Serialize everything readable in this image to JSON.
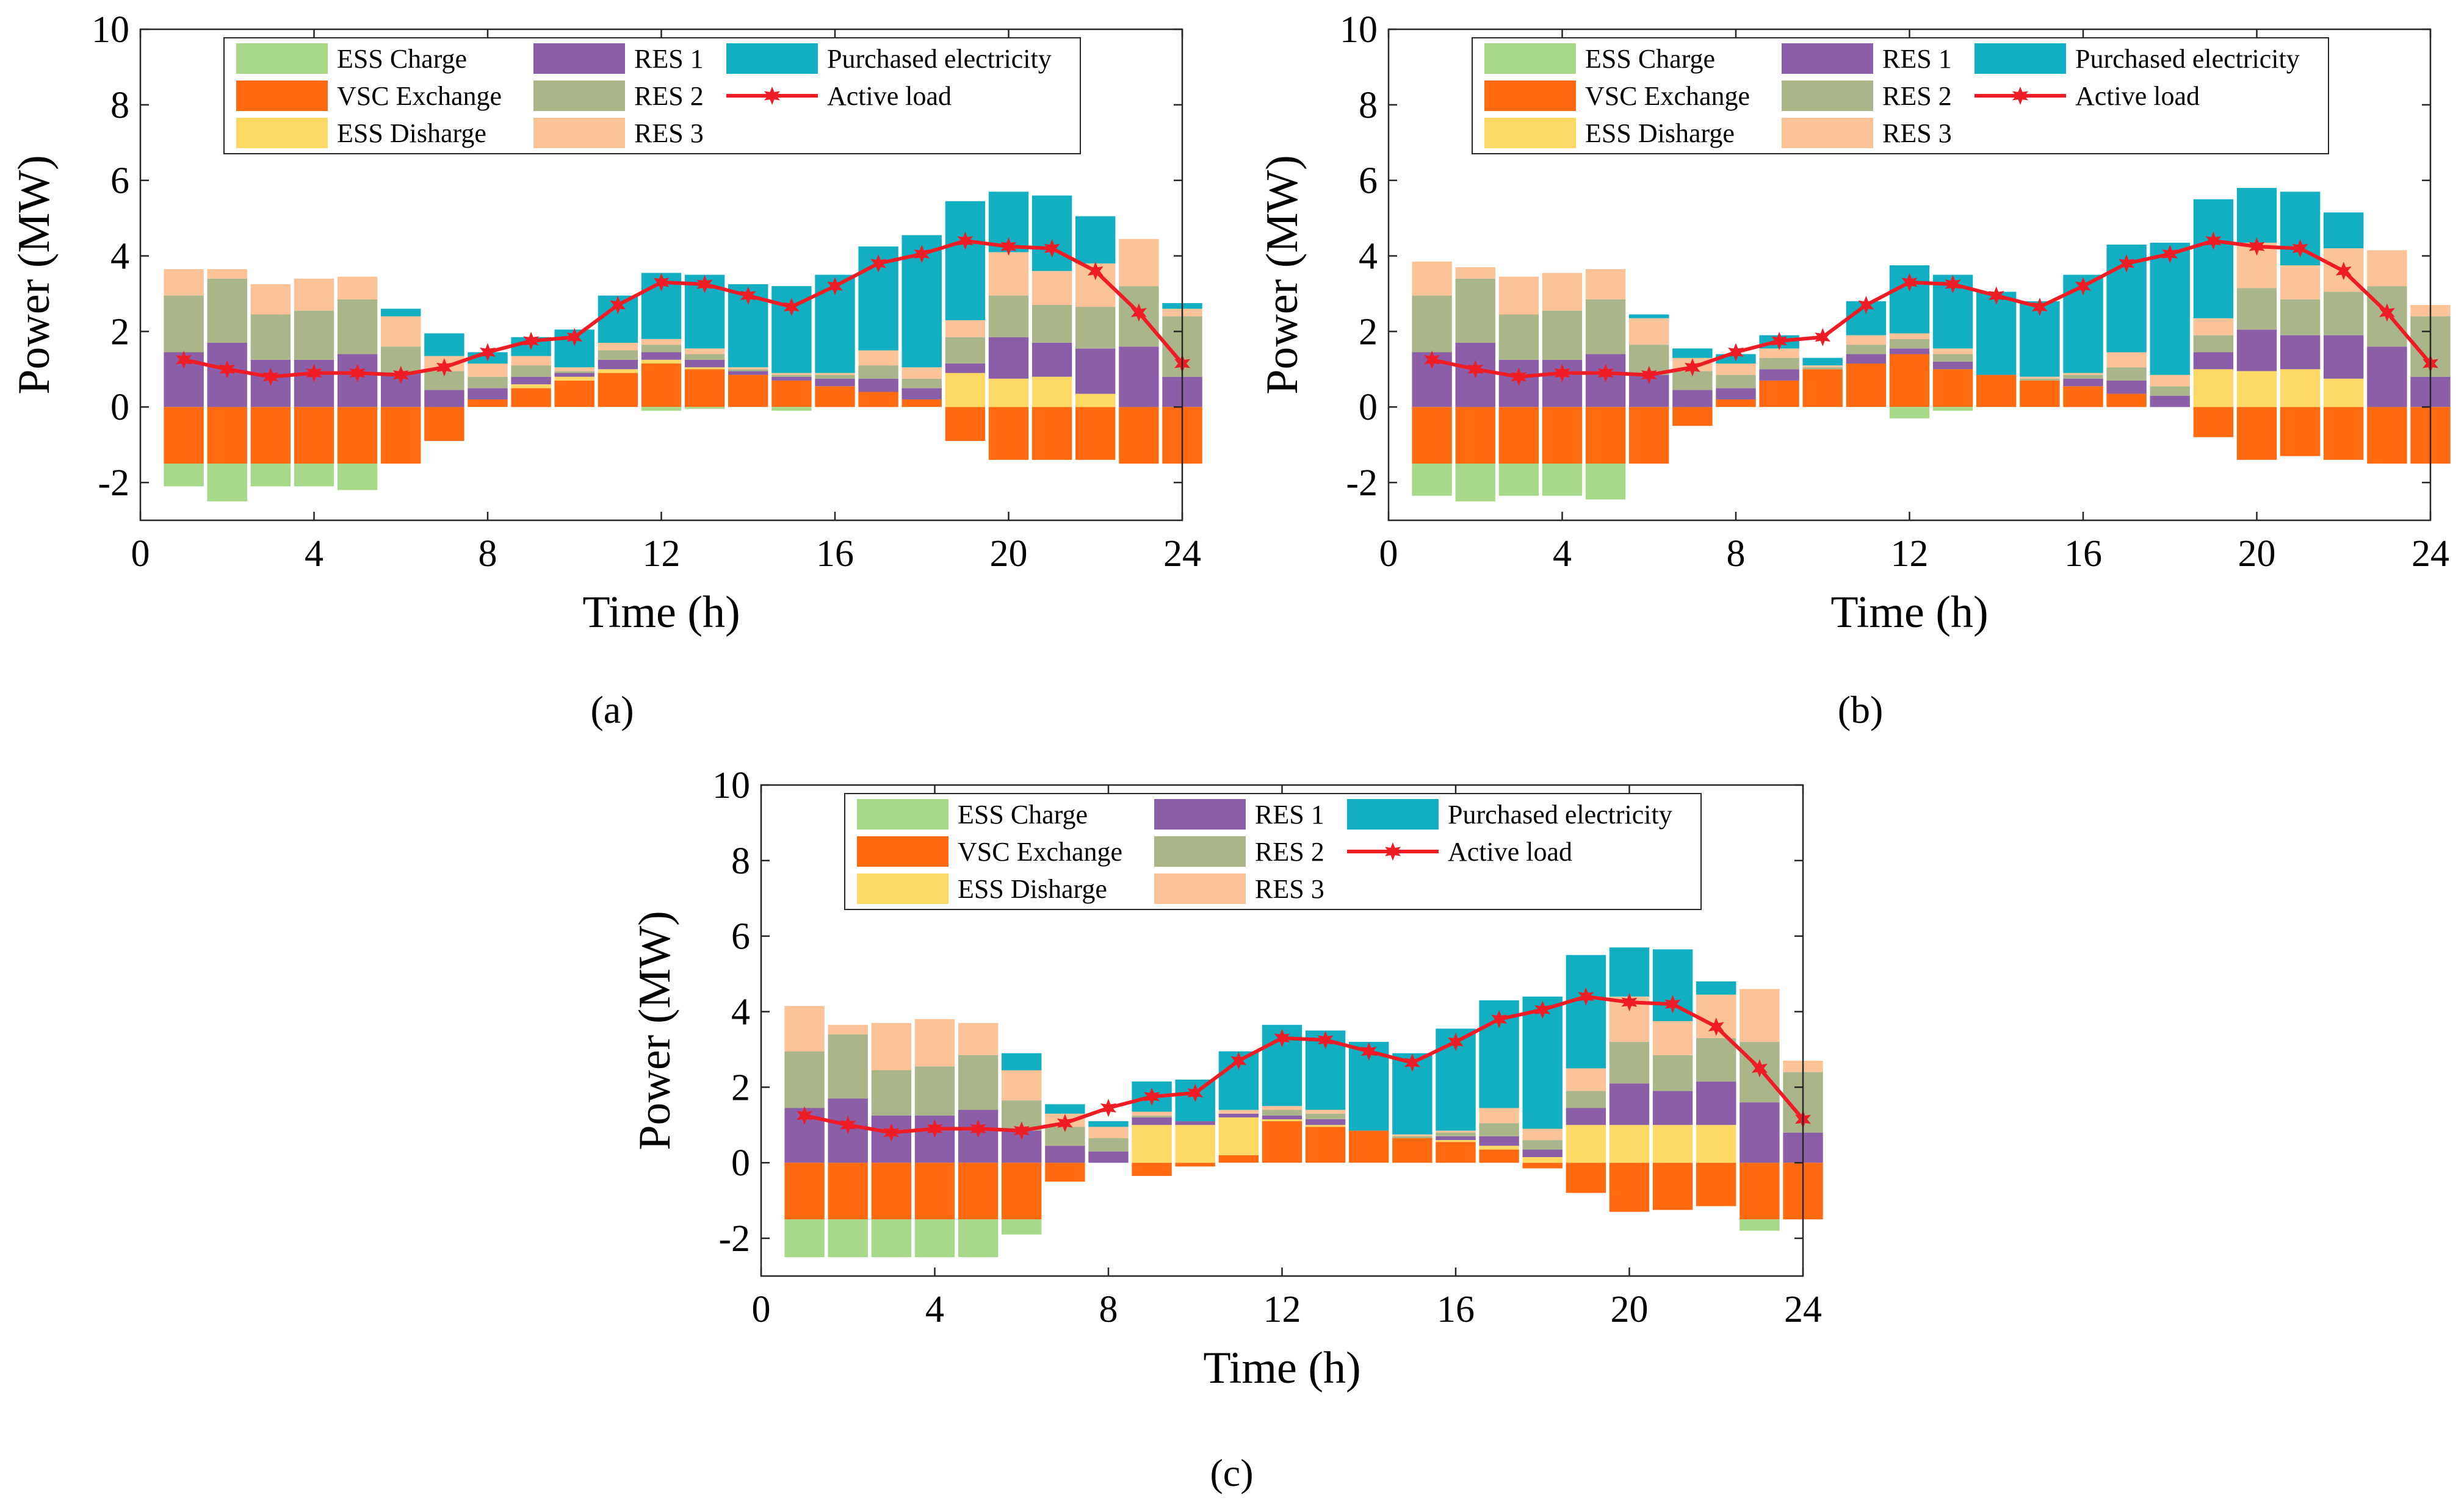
{
  "figure": {
    "captions": [
      "(a)",
      "(b)",
      "(c)"
    ]
  },
  "colors": {
    "ESS Charge": "#a8d88a",
    "VSC Exchange": "#ff6a10",
    "ESS Disharge": "#ffd966",
    "RES 1": "#8a5fa8",
    "RES 2": "#aab58a",
    "RES 3": "#fbc397",
    "Purchased electricity": "#12afc3",
    "Active load": "#ee1c24"
  },
  "chart_data": [
    {
      "type": "bar",
      "panel": "a",
      "stacked": true,
      "title": "",
      "xlabel": "Time (h)",
      "ylabel": "Power (MW)",
      "xlim": [
        0,
        24
      ],
      "ylim": [
        -3,
        10
      ],
      "xticks": [
        0,
        4,
        8,
        12,
        16,
        20,
        24
      ],
      "yticks": [
        -2,
        0,
        2,
        4,
        6,
        8,
        10
      ],
      "x": [
        1,
        2,
        3,
        4,
        5,
        6,
        7,
        8,
        9,
        10,
        11,
        12,
        13,
        14,
        15,
        16,
        17,
        18,
        19,
        20,
        21,
        22,
        23,
        24
      ],
      "legend": [
        "ESS Charge",
        "VSC Exchange",
        "ESS Disharge",
        "RES 1",
        "RES 2",
        "RES 3",
        "Purchased electricity",
        "Active load"
      ],
      "legend_position": "top",
      "series": [
        {
          "name": "VSC Exchange",
          "values": [
            -1.5,
            -1.5,
            -1.5,
            -1.5,
            -1.5,
            -1.5,
            -0.9,
            0.2,
            0.5,
            0.7,
            0.9,
            1.15,
            1.0,
            0.85,
            0.7,
            0.55,
            0.4,
            0.2,
            -0.9,
            -1.4,
            -1.4,
            -1.4,
            -1.5,
            -1.5
          ]
        },
        {
          "name": "ESS Charge",
          "values": [
            -0.6,
            -1.0,
            -0.6,
            -0.6,
            -0.7,
            0,
            0,
            0,
            0,
            0,
            0,
            -0.1,
            -0.05,
            0,
            -0.1,
            0,
            0,
            0,
            0,
            0,
            0,
            0,
            0,
            0
          ]
        },
        {
          "name": "ESS Disharge",
          "values": [
            0,
            0,
            0,
            0,
            0,
            0,
            0,
            0,
            0.1,
            0.1,
            0.1,
            0.1,
            0.05,
            0,
            0,
            0,
            0,
            0,
            0.9,
            0.75,
            0.8,
            0.35,
            0,
            0
          ]
        },
        {
          "name": "RES 1",
          "values": [
            1.45,
            1.7,
            1.25,
            1.25,
            1.4,
            0.9,
            0.45,
            0.3,
            0.2,
            0.1,
            0.25,
            0.2,
            0.2,
            0.1,
            0.1,
            0.2,
            0.35,
            0.3,
            0.25,
            1.1,
            0.9,
            1.2,
            1.6,
            0.8
          ]
        },
        {
          "name": "RES 2",
          "values": [
            1.5,
            1.7,
            1.2,
            1.3,
            1.45,
            0.7,
            0.5,
            0.3,
            0.3,
            0.05,
            0.25,
            0.2,
            0.15,
            0.05,
            0.05,
            0.1,
            0.35,
            0.25,
            0.7,
            1.1,
            1.0,
            1.1,
            1.6,
            1.6
          ]
        },
        {
          "name": "RES 3",
          "values": [
            0.7,
            0.25,
            0.8,
            0.85,
            0.6,
            0.8,
            0.4,
            0.35,
            0.25,
            0.1,
            0.2,
            0.15,
            0.15,
            0.05,
            0.05,
            0.05,
            0.4,
            0.3,
            0.45,
            1.15,
            0.9,
            1.15,
            1.25,
            0.2
          ]
        },
        {
          "name": "Purchased electricity",
          "values": [
            0,
            0,
            0,
            0,
            0,
            0.2,
            0.6,
            0.3,
            0.5,
            1.0,
            1.25,
            1.75,
            1.95,
            2.2,
            2.3,
            2.6,
            2.75,
            3.5,
            3.15,
            1.6,
            2.0,
            1.25,
            0,
            0.15
          ]
        },
        {
          "name": "Active load",
          "type": "line",
          "values": [
            1.25,
            1.0,
            0.8,
            0.9,
            0.9,
            0.85,
            1.05,
            1.45,
            1.75,
            1.85,
            2.7,
            3.3,
            3.25,
            2.95,
            2.65,
            3.2,
            3.8,
            4.05,
            4.4,
            4.25,
            4.2,
            3.6,
            2.5,
            1.15
          ]
        }
      ]
    },
    {
      "type": "bar",
      "panel": "b",
      "stacked": true,
      "title": "",
      "xlabel": "Time (h)",
      "ylabel": "Power (MW)",
      "xlim": [
        0,
        24
      ],
      "ylim": [
        -3,
        10
      ],
      "xticks": [
        0,
        4,
        8,
        12,
        16,
        20,
        24
      ],
      "yticks": [
        -2,
        0,
        2,
        4,
        6,
        8,
        10
      ],
      "x": [
        1,
        2,
        3,
        4,
        5,
        6,
        7,
        8,
        9,
        10,
        11,
        12,
        13,
        14,
        15,
        16,
        17,
        18,
        19,
        20,
        21,
        22,
        23,
        24
      ],
      "legend": [
        "ESS Charge",
        "VSC Exchange",
        "ESS Disharge",
        "RES 1",
        "RES 2",
        "RES 3",
        "Purchased electricity",
        "Active load"
      ],
      "legend_position": "top",
      "series": [
        {
          "name": "VSC Exchange",
          "values": [
            -1.5,
            -1.5,
            -1.5,
            -1.5,
            -1.5,
            -1.5,
            -0.5,
            0.2,
            0.7,
            1.0,
            1.15,
            1.4,
            1.0,
            0.85,
            0.7,
            0.55,
            0.35,
            0,
            -0.8,
            -1.4,
            -1.3,
            -1.4,
            -1.5,
            -1.5
          ]
        },
        {
          "name": "ESS Charge",
          "values": [
            -0.85,
            -1.0,
            -0.85,
            -0.85,
            -0.95,
            0,
            0,
            0,
            0,
            0,
            0,
            -0.3,
            -0.1,
            0,
            0,
            0,
            0,
            0,
            0,
            0,
            0,
            0,
            0,
            0
          ]
        },
        {
          "name": "ESS Disharge",
          "values": [
            0,
            0,
            0,
            0,
            0,
            0,
            0,
            0,
            0,
            0,
            0,
            0,
            0,
            0,
            0,
            0,
            0,
            0,
            1.0,
            0.95,
            1.0,
            0.75,
            0,
            0
          ]
        },
        {
          "name": "RES 1",
          "values": [
            1.45,
            1.7,
            1.25,
            1.25,
            1.4,
            0.85,
            0.45,
            0.3,
            0.3,
            0,
            0.25,
            0.15,
            0.2,
            0,
            0,
            0.2,
            0.35,
            0.3,
            0.45,
            1.1,
            0.9,
            1.15,
            1.6,
            0.8
          ]
        },
        {
          "name": "RES 2",
          "values": [
            1.5,
            1.7,
            1.2,
            1.3,
            1.45,
            0.8,
            0.5,
            0.35,
            0.3,
            0.05,
            0.25,
            0.25,
            0.2,
            0,
            0.05,
            0.1,
            0.35,
            0.25,
            0.45,
            1.1,
            0.95,
            1.15,
            1.6,
            1.6
          ]
        },
        {
          "name": "RES 3",
          "values": [
            0.9,
            0.3,
            1.0,
            1.0,
            0.8,
            0.7,
            0.35,
            0.3,
            0.25,
            0.05,
            0.25,
            0.15,
            0.15,
            0,
            0.05,
            0.05,
            0.4,
            0.3,
            0.45,
            1.2,
            0.9,
            1.15,
            0.95,
            0.3
          ]
        },
        {
          "name": "Purchased electricity",
          "values": [
            0,
            0,
            0,
            0,
            0,
            0.1,
            0.25,
            0.25,
            0.35,
            0.2,
            0.9,
            1.8,
            1.95,
            2.2,
            2.0,
            2.6,
            2.85,
            3.5,
            3.15,
            1.45,
            1.95,
            0.95,
            0,
            0
          ]
        },
        {
          "name": "Active load",
          "type": "line",
          "values": [
            1.25,
            1.0,
            0.8,
            0.9,
            0.9,
            0.85,
            1.05,
            1.45,
            1.75,
            1.85,
            2.7,
            3.3,
            3.25,
            2.95,
            2.65,
            3.2,
            3.8,
            4.05,
            4.4,
            4.25,
            4.2,
            3.6,
            2.5,
            1.15
          ]
        }
      ]
    },
    {
      "type": "bar",
      "panel": "c",
      "stacked": true,
      "title": "",
      "xlabel": "Time (h)",
      "ylabel": "Power (MW)",
      "xlim": [
        0,
        24
      ],
      "ylim": [
        -3,
        10
      ],
      "xticks": [
        0,
        4,
        8,
        12,
        16,
        20,
        24
      ],
      "yticks": [
        -2,
        0,
        2,
        4,
        6,
        8,
        10
      ],
      "x": [
        1,
        2,
        3,
        4,
        5,
        6,
        7,
        8,
        9,
        10,
        11,
        12,
        13,
        14,
        15,
        16,
        17,
        18,
        19,
        20,
        21,
        22,
        23,
        24
      ],
      "legend": [
        "ESS Charge",
        "VSC Exchange",
        "ESS Disharge",
        "RES 1",
        "RES 2",
        "RES 3",
        "Purchased electricity",
        "Active load"
      ],
      "legend_position": "top",
      "series": [
        {
          "name": "VSC Exchange",
          "values": [
            -1.5,
            -1.5,
            -1.5,
            -1.5,
            -1.5,
            -1.5,
            -0.5,
            0,
            -0.35,
            -0.1,
            0.2,
            1.1,
            0.95,
            0.85,
            0.65,
            0.55,
            0.35,
            -0.15,
            -0.8,
            -1.3,
            -1.25,
            -1.15,
            -1.5,
            -1.5
          ]
        },
        {
          "name": "ESS Charge",
          "values": [
            -1.0,
            -1.0,
            -1.0,
            -1.0,
            -1.0,
            -0.4,
            0,
            0,
            0,
            0,
            0,
            0,
            0,
            0,
            0,
            0,
            0,
            0,
            0,
            0,
            0,
            0,
            -0.3,
            0
          ]
        },
        {
          "name": "ESS Disharge",
          "values": [
            0,
            0,
            0,
            0,
            0,
            0,
            0,
            0,
            1.0,
            1.0,
            1.0,
            0.05,
            0.05,
            0,
            0,
            0.05,
            0.1,
            0.15,
            1.0,
            1.0,
            1.0,
            1.0,
            0,
            0
          ]
        },
        {
          "name": "RES 1",
          "values": [
            1.45,
            1.7,
            1.25,
            1.25,
            1.4,
            0.85,
            0.45,
            0.3,
            0.2,
            0.1,
            0.1,
            0.1,
            0.15,
            0,
            0,
            0.1,
            0.25,
            0.2,
            0.45,
            1.1,
            0.9,
            1.15,
            1.6,
            0.8
          ]
        },
        {
          "name": "RES 2",
          "values": [
            1.5,
            1.7,
            1.2,
            1.3,
            1.45,
            0.8,
            0.5,
            0.35,
            0.05,
            0,
            0,
            0.15,
            0.15,
            0,
            0.05,
            0.1,
            0.35,
            0.25,
            0.45,
            1.1,
            0.95,
            1.15,
            1.6,
            1.6
          ]
        },
        {
          "name": "RES 3",
          "values": [
            1.2,
            0.25,
            1.25,
            1.25,
            0.85,
            0.8,
            0.35,
            0.3,
            0.1,
            0,
            0.1,
            0.1,
            0.1,
            0,
            0.05,
            0.05,
            0.4,
            0.3,
            0.6,
            1.2,
            0.9,
            1.15,
            1.4,
            0.3
          ]
        },
        {
          "name": "Purchased electricity",
          "values": [
            0,
            0,
            0,
            0,
            0,
            0.45,
            0.25,
            0.15,
            0.8,
            1.1,
            1.55,
            2.15,
            2.1,
            2.35,
            2.15,
            2.7,
            2.85,
            3.5,
            3.0,
            1.3,
            1.9,
            0.35,
            0,
            0
          ]
        },
        {
          "name": "Active load",
          "type": "line",
          "values": [
            1.25,
            1.0,
            0.8,
            0.9,
            0.9,
            0.85,
            1.05,
            1.45,
            1.75,
            1.85,
            2.7,
            3.3,
            3.25,
            2.95,
            2.65,
            3.2,
            3.8,
            4.05,
            4.4,
            4.25,
            4.2,
            3.6,
            2.5,
            1.15
          ]
        }
      ]
    }
  ]
}
